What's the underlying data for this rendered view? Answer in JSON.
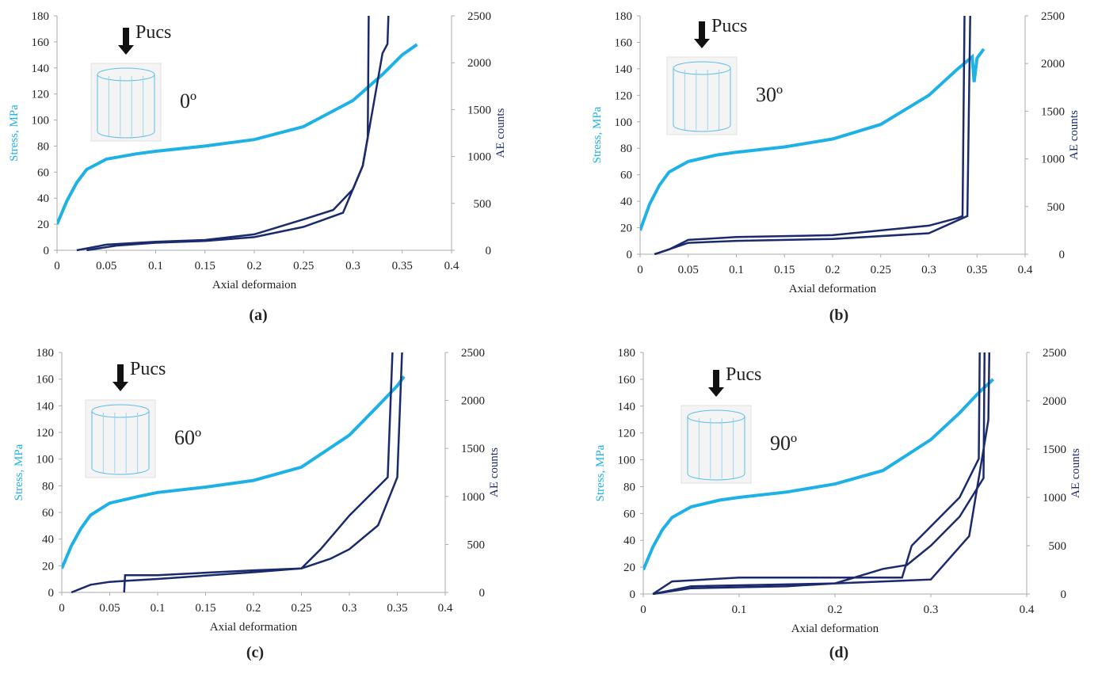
{
  "chart_data": [
    {
      "type": "line",
      "panel_label": "(a)",
      "xlabel": "Axial deformaion",
      "ylabel": "Stress, MPa",
      "y2label": "AE counts",
      "load_label": "Pucs",
      "angle_label": "0º",
      "xlim": [
        0,
        0.4
      ],
      "xticks": [
        0,
        0.05,
        0.1,
        0.15,
        0.2,
        0.25,
        0.3,
        0.35,
        0.4
      ],
      "ylim": [
        0,
        180
      ],
      "yticks": [
        0,
        20,
        40,
        60,
        80,
        100,
        120,
        140,
        160,
        180
      ],
      "y2lim": [
        0,
        2500
      ],
      "y2ticks": [
        0,
        500,
        1000,
        1500,
        2000,
        2500
      ],
      "series": [
        {
          "color": "#1eb1e6",
          "x": [
            0,
            0.01,
            0.02,
            0.03,
            0.05,
            0.08,
            0.1,
            0.15,
            0.2,
            0.25,
            0.3,
            0.33,
            0.35,
            0.365
          ],
          "values": [
            20,
            38,
            52,
            62,
            70,
            74,
            76,
            80,
            85,
            95,
            115,
            135,
            150,
            158
          ]
        },
        {
          "color": "#1a2a6c",
          "axis": "y2",
          "x": [
            0.02,
            0.05,
            0.1,
            0.15,
            0.2,
            0.25,
            0.28,
            0.3,
            0.31,
            0.315,
            0.316
          ],
          "values": [
            0,
            60,
            90,
            110,
            170,
            330,
            430,
            650,
            900,
            1200,
            2500
          ]
        },
        {
          "color": "#1a2a6c",
          "axis": "y2",
          "x": [
            0.03,
            0.06,
            0.1,
            0.15,
            0.2,
            0.25,
            0.29,
            0.31,
            0.32,
            0.33,
            0.335,
            0.336
          ],
          "values": [
            0,
            50,
            80,
            100,
            140,
            250,
            400,
            900,
            1500,
            2100,
            2200,
            2500
          ]
        }
      ]
    },
    {
      "type": "line",
      "panel_label": "(b)",
      "xlabel": "Axial deformation",
      "ylabel": "Stress, MPa",
      "y2label": "AE counts",
      "load_label": "Pucs",
      "angle_label": "30º",
      "xlim": [
        0,
        0.4
      ],
      "xticks": [
        0,
        0.05,
        0.1,
        0.15,
        0.2,
        0.25,
        0.3,
        0.35,
        0.4
      ],
      "ylim": [
        0,
        180
      ],
      "yticks": [
        0,
        20,
        40,
        60,
        80,
        100,
        120,
        140,
        160,
        180
      ],
      "y2lim": [
        0,
        2500
      ],
      "y2ticks": [
        0,
        500,
        1000,
        1500,
        2000,
        2500
      ],
      "series": [
        {
          "color": "#1eb1e6",
          "x": [
            0,
            0.01,
            0.02,
            0.03,
            0.05,
            0.08,
            0.1,
            0.15,
            0.2,
            0.25,
            0.3,
            0.33,
            0.345,
            0.347,
            0.35,
            0.357
          ],
          "values": [
            18,
            38,
            52,
            62,
            70,
            75,
            77,
            81,
            87,
            98,
            120,
            140,
            149,
            130,
            148,
            155
          ]
        },
        {
          "color": "#1a2a6c",
          "axis": "y2",
          "x": [
            0.015,
            0.03,
            0.05,
            0.1,
            0.2,
            0.3,
            0.33,
            0.335,
            0.337
          ],
          "values": [
            0,
            50,
            150,
            180,
            200,
            300,
            380,
            400,
            2500
          ]
        },
        {
          "color": "#1a2a6c",
          "axis": "y2",
          "x": [
            0.015,
            0.05,
            0.1,
            0.2,
            0.3,
            0.34,
            0.343
          ],
          "values": [
            0,
            120,
            140,
            160,
            220,
            400,
            2500
          ]
        }
      ]
    },
    {
      "type": "line",
      "panel_label": "(c)",
      "xlabel": "Axial deformation",
      "ylabel": "Stress, MPa",
      "y2label": "AE counts",
      "load_label": "Pucs",
      "angle_label": "60º",
      "xlim": [
        0,
        0.4
      ],
      "xticks": [
        0,
        0.05,
        0.1,
        0.15,
        0.2,
        0.25,
        0.3,
        0.35,
        0.4
      ],
      "ylim": [
        0,
        180
      ],
      "yticks": [
        0,
        20,
        40,
        60,
        80,
        100,
        120,
        140,
        160,
        180
      ],
      "y2lim": [
        0,
        2500
      ],
      "y2ticks": [
        0,
        500,
        1000,
        1500,
        2000,
        2500
      ],
      "series": [
        {
          "color": "#1eb1e6",
          "x": [
            0,
            0.01,
            0.02,
            0.03,
            0.05,
            0.08,
            0.1,
            0.15,
            0.2,
            0.25,
            0.3,
            0.33,
            0.35,
            0.357
          ],
          "values": [
            18,
            35,
            48,
            58,
            67,
            72,
            75,
            79,
            84,
            94,
            118,
            140,
            155,
            162
          ]
        },
        {
          "color": "#1a2a6c",
          "axis": "y2",
          "x": [
            0.01,
            0.03,
            0.05,
            0.065,
            0.1,
            0.2,
            0.25,
            0.27,
            0.3,
            0.33,
            0.34,
            0.345
          ],
          "values": [
            0,
            80,
            110,
            120,
            140,
            210,
            250,
            450,
            800,
            1100,
            1200,
            2500
          ]
        },
        {
          "color": "#1a2a6c",
          "axis": "y2",
          "x": [
            0.065,
            0.066,
            0.1,
            0.2,
            0.25,
            0.28,
            0.3,
            0.33,
            0.35,
            0.355
          ],
          "values": [
            0,
            180,
            180,
            230,
            250,
            350,
            450,
            700,
            1200,
            2500
          ]
        }
      ]
    },
    {
      "type": "line",
      "panel_label": "(d)",
      "xlabel": "Axial deformation",
      "ylabel": "Stress, MPa",
      "y2label": "AE counts",
      "load_label": "Pucs",
      "angle_label": "90º",
      "xlim": [
        0,
        0.4
      ],
      "xticks": [
        0,
        0.1,
        0.2,
        0.3,
        0.4
      ],
      "ylim": [
        0,
        180
      ],
      "yticks": [
        0,
        20,
        40,
        60,
        80,
        100,
        120,
        140,
        160,
        180
      ],
      "y2lim": [
        0,
        2500
      ],
      "y2ticks": [
        0,
        500,
        1000,
        1500,
        2000,
        2500
      ],
      "series": [
        {
          "color": "#1eb1e6",
          "x": [
            0,
            0.01,
            0.02,
            0.03,
            0.05,
            0.08,
            0.1,
            0.15,
            0.2,
            0.25,
            0.3,
            0.33,
            0.35,
            0.365
          ],
          "values": [
            18,
            35,
            48,
            57,
            65,
            70,
            72,
            76,
            82,
            92,
            115,
            135,
            150,
            160
          ]
        },
        {
          "color": "#1a2a6c",
          "axis": "y2",
          "x": [
            0.01,
            0.03,
            0.1,
            0.2,
            0.27,
            0.28,
            0.3,
            0.33,
            0.35,
            0.351
          ],
          "values": [
            0,
            130,
            170,
            170,
            170,
            500,
            700,
            1000,
            1400,
            2500
          ]
        },
        {
          "color": "#1a2a6c",
          "axis": "y2",
          "x": [
            0.01,
            0.05,
            0.15,
            0.2,
            0.25,
            0.275,
            0.3,
            0.33,
            0.355,
            0.356
          ],
          "values": [
            0,
            60,
            80,
            110,
            260,
            300,
            500,
            800,
            1200,
            2500
          ]
        },
        {
          "color": "#1a2a6c",
          "axis": "y2",
          "x": [
            0.01,
            0.05,
            0.2,
            0.3,
            0.34,
            0.36,
            0.361
          ],
          "values": [
            0,
            80,
            110,
            150,
            600,
            1800,
            2500
          ]
        }
      ]
    }
  ]
}
